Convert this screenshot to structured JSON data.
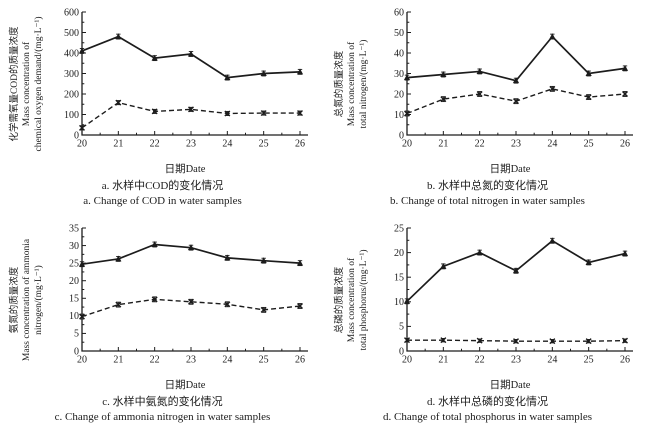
{
  "colors": {
    "line": "#1c1c1c",
    "background": "#ffffff"
  },
  "chart_data": [
    {
      "id": "a",
      "type": "line",
      "x": [
        20,
        21,
        22,
        23,
        24,
        25,
        26
      ],
      "xlabel": "日期Date",
      "ylabel_lines": [
        "化学需氧量COD的质量浓度",
        "Mass concentration of",
        "chemical oxygen demand/(mg·L⁻¹)"
      ],
      "ylim": [
        0,
        600
      ],
      "ytick_step": 100,
      "grid": false,
      "legend": "none",
      "series": [
        {
          "name": "solid-triangle",
          "line_style": "solid",
          "marker": "triangle",
          "values": [
            410,
            480,
            375,
            395,
            280,
            300,
            308
          ],
          "error": 12
        },
        {
          "name": "dashed-x",
          "line_style": "dashed",
          "marker": "x",
          "values": [
            35,
            158,
            115,
            125,
            105,
            107,
            107
          ],
          "error": 10
        }
      ],
      "caption_zh": "a. 水样中COD的变化情况",
      "caption_en": "a. Change of COD in water samples"
    },
    {
      "id": "b",
      "type": "line",
      "x": [
        20,
        21,
        22,
        23,
        24,
        25,
        26
      ],
      "xlabel": "日期Date",
      "ylabel_lines": [
        "总氮的质量浓度",
        "Mass concentration of",
        "total nitrogen/(mg·L⁻¹)"
      ],
      "ylim": [
        0,
        60
      ],
      "ytick_step": 10,
      "grid": false,
      "legend": "none",
      "series": [
        {
          "name": "solid-triangle",
          "line_style": "solid",
          "marker": "triangle",
          "values": [
            28,
            29.5,
            31,
            26.5,
            48,
            30,
            32.5
          ],
          "error": 1.2
        },
        {
          "name": "dashed-x",
          "line_style": "dashed",
          "marker": "x",
          "values": [
            10.5,
            17.5,
            20,
            16.5,
            22.5,
            18.5,
            20
          ],
          "error": 1.2
        }
      ],
      "caption_zh": "b. 水样中总氮的变化情况",
      "caption_en": "b. Change of total nitrogen in water samples"
    },
    {
      "id": "c",
      "type": "line",
      "x": [
        20,
        21,
        22,
        23,
        24,
        25,
        26
      ],
      "xlabel": "日期Date",
      "ylabel_lines": [
        "氨氮的质量浓度",
        "Mass concentration of ammonia",
        "nitrogen/(mg·L⁻¹)"
      ],
      "ylim": [
        0,
        35
      ],
      "ytick_step": 5,
      "grid": false,
      "legend": "none",
      "series": [
        {
          "name": "solid-triangle",
          "line_style": "solid",
          "marker": "triangle",
          "values": [
            24.7,
            26.2,
            30.3,
            29.4,
            26.5,
            25.7,
            25
          ],
          "error": 0.7
        },
        {
          "name": "dashed-x",
          "line_style": "dashed",
          "marker": "x",
          "values": [
            9.8,
            13.2,
            14.7,
            14,
            13.3,
            11.7,
            12.8
          ],
          "error": 0.7
        }
      ],
      "caption_zh": "c. 水样中氨氮的变化情况",
      "caption_en": "c. Change of ammonia nitrogen in water samples"
    },
    {
      "id": "d",
      "type": "line",
      "x": [
        20,
        21,
        22,
        23,
        24,
        25,
        26
      ],
      "xlabel": "日期Date",
      "ylabel_lines": [
        "总磷的质量浓度",
        "Mass concentration of",
        "total phosphorus/(mg·L⁻¹)"
      ],
      "ylim": [
        0,
        25
      ],
      "ytick_step": 5,
      "grid": false,
      "legend": "none",
      "series": [
        {
          "name": "solid-triangle",
          "line_style": "solid",
          "marker": "triangle",
          "values": [
            10.1,
            17.2,
            20,
            16.3,
            22.4,
            18,
            19.8
          ],
          "error": 0.5
        },
        {
          "name": "dashed-x",
          "line_style": "dashed",
          "marker": "x",
          "values": [
            2.2,
            2.2,
            2.1,
            2,
            2,
            2,
            2.1
          ],
          "error": 0.35
        }
      ],
      "caption_zh": "d. 水样中总磷的变化情况",
      "caption_en": "d. Change of total phosphorus in water samples"
    }
  ]
}
